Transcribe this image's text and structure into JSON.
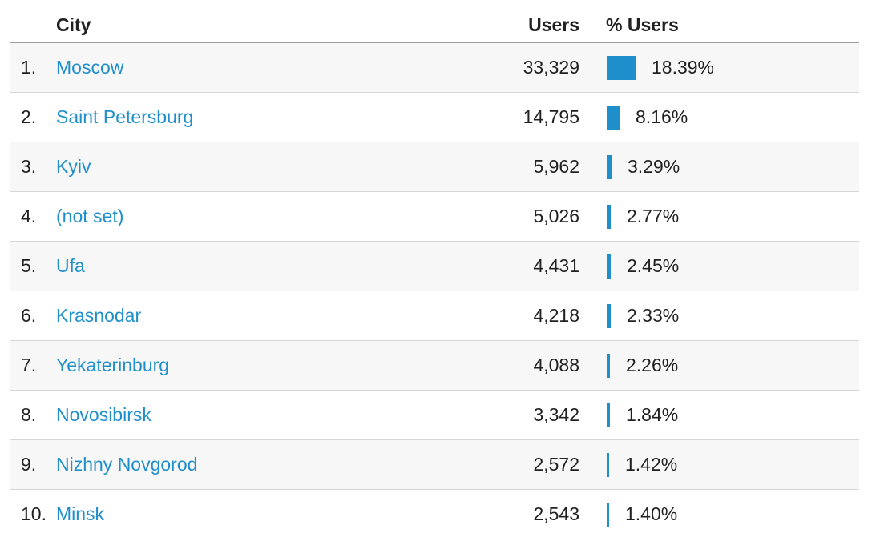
{
  "table": {
    "headers": {
      "city": "City",
      "users": "Users",
      "pct_users": "% Users"
    },
    "bar_color": "#1f8fcc",
    "link_color": "#1f8fcc",
    "rows": [
      {
        "rank": "1.",
        "city": "Moscow",
        "users": "33,329",
        "pct": "18.39%",
        "fraction": 0.1839
      },
      {
        "rank": "2.",
        "city": "Saint Petersburg",
        "users": "14,795",
        "pct": "8.16%",
        "fraction": 0.0816
      },
      {
        "rank": "3.",
        "city": "Kyiv",
        "users": "5,962",
        "pct": "3.29%",
        "fraction": 0.0329
      },
      {
        "rank": "4.",
        "city": "(not set)",
        "users": "5,026",
        "pct": "2.77%",
        "fraction": 0.0277
      },
      {
        "rank": "5.",
        "city": "Ufa",
        "users": "4,431",
        "pct": "2.45%",
        "fraction": 0.0245
      },
      {
        "rank": "6.",
        "city": "Krasnodar",
        "users": "4,218",
        "pct": "2.33%",
        "fraction": 0.0233
      },
      {
        "rank": "7.",
        "city": "Yekaterinburg",
        "users": "4,088",
        "pct": "2.26%",
        "fraction": 0.0226
      },
      {
        "rank": "8.",
        "city": "Novosibirsk",
        "users": "3,342",
        "pct": "1.84%",
        "fraction": 0.0184
      },
      {
        "rank": "9.",
        "city": "Nizhny Novgorod",
        "users": "2,572",
        "pct": "1.42%",
        "fraction": 0.0142
      },
      {
        "rank": "10.",
        "city": "Minsk",
        "users": "2,543",
        "pct": "1.40%",
        "fraction": 0.014
      }
    ]
  }
}
